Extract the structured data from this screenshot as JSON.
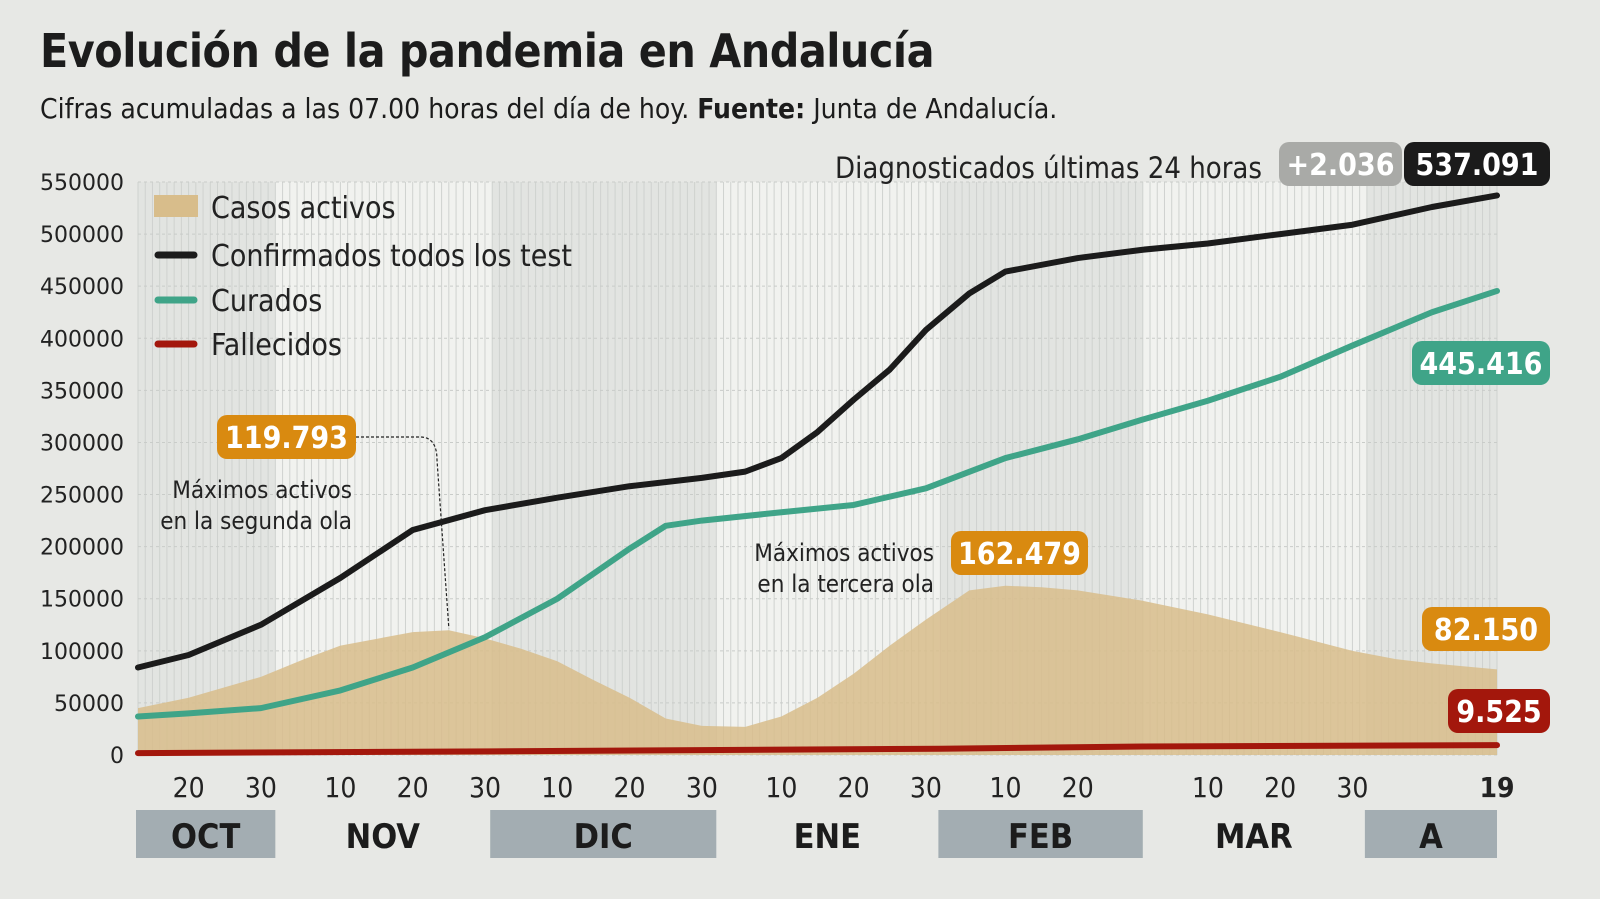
{
  "title": "Evolución de la pandemia en Andalucía",
  "subtitle": {
    "text": "Cifras acumuladas a las 07.00 horas del día de hoy.",
    "source_label": "Fuente:",
    "source": "Junta de Andalucía."
  },
  "header_note": {
    "text": "Diagnosticados últimas 24 horas",
    "delta": "+2.036",
    "total": "537.091"
  },
  "colors": {
    "activos": "#d8bd8b",
    "confirmados": "#1b1b1b",
    "curados": "#3fa488",
    "fallecidos": "#a3170c",
    "orange_label": "#d98a10",
    "month_band": "#a3adb2",
    "delta_badge": "#a9aaa7"
  },
  "chart_data": {
    "type": "line",
    "ylim": [
      0,
      550000
    ],
    "yticks": [
      0,
      50000,
      100000,
      150000,
      200000,
      250000,
      300000,
      350000,
      400000,
      450000,
      500000,
      550000
    ],
    "xlim": [
      "2020-10-13",
      "2021-04-19"
    ],
    "grid": true,
    "legend_position": "top-left",
    "xtick_labels": [
      {
        "date": "2020-10-20",
        "label": "20"
      },
      {
        "date": "2020-10-30",
        "label": "30"
      },
      {
        "date": "2020-11-10",
        "label": "10"
      },
      {
        "date": "2020-11-20",
        "label": "20"
      },
      {
        "date": "2020-11-30",
        "label": "30"
      },
      {
        "date": "2020-12-10",
        "label": "10"
      },
      {
        "date": "2020-12-20",
        "label": "20"
      },
      {
        "date": "2020-12-30",
        "label": "30"
      },
      {
        "date": "2021-01-10",
        "label": "10"
      },
      {
        "date": "2021-01-20",
        "label": "20"
      },
      {
        "date": "2021-01-30",
        "label": "30"
      },
      {
        "date": "2021-02-10",
        "label": "10"
      },
      {
        "date": "2021-02-20",
        "label": "20"
      },
      {
        "date": "2021-03-10",
        "label": "10"
      },
      {
        "date": "2021-03-20",
        "label": "20"
      },
      {
        "date": "2021-03-30",
        "label": "30"
      },
      {
        "date": "2021-04-19",
        "label": "19",
        "bold": true
      }
    ],
    "months": [
      {
        "label": "OCT",
        "start": "2020-10-13",
        "end": "2020-11-01",
        "shaded": true
      },
      {
        "label": "NOV",
        "start": "2020-11-01",
        "end": "2020-12-01",
        "shaded": false
      },
      {
        "label": "DIC",
        "start": "2020-12-01",
        "end": "2021-01-01",
        "shaded": true
      },
      {
        "label": "ENE",
        "start": "2021-01-01",
        "end": "2021-02-01",
        "shaded": false
      },
      {
        "label": "FEB",
        "start": "2021-02-01",
        "end": "2021-03-01",
        "shaded": true
      },
      {
        "label": "MAR",
        "start": "2021-03-01",
        "end": "2021-04-01",
        "shaded": false
      },
      {
        "label": "A",
        "start": "2021-04-01",
        "end": "2021-04-19",
        "shaded": true
      }
    ],
    "series": [
      {
        "name": "Casos activos",
        "kind": "area",
        "color_key": "activos",
        "end_label": "82.150",
        "points": [
          [
            "2020-10-13",
            45000
          ],
          [
            "2020-10-20",
            55000
          ],
          [
            "2020-10-30",
            75000
          ],
          [
            "2020-11-05",
            92000
          ],
          [
            "2020-11-10",
            105000
          ],
          [
            "2020-11-20",
            118000
          ],
          [
            "2020-11-25",
            119793
          ],
          [
            "2020-11-30",
            112000
          ],
          [
            "2020-12-05",
            102000
          ],
          [
            "2020-12-10",
            90000
          ],
          [
            "2020-12-15",
            72000
          ],
          [
            "2020-12-20",
            55000
          ],
          [
            "2020-12-25",
            35000
          ],
          [
            "2020-12-30",
            28000
          ],
          [
            "2021-01-05",
            27000
          ],
          [
            "2021-01-10",
            37000
          ],
          [
            "2021-01-15",
            55000
          ],
          [
            "2021-01-20",
            78000
          ],
          [
            "2021-01-25",
            105000
          ],
          [
            "2021-01-30",
            130000
          ],
          [
            "2021-02-05",
            158000
          ],
          [
            "2021-02-10",
            162479
          ],
          [
            "2021-02-15",
            161000
          ],
          [
            "2021-02-20",
            158000
          ],
          [
            "2021-03-01",
            148000
          ],
          [
            "2021-03-10",
            135000
          ],
          [
            "2021-03-20",
            118000
          ],
          [
            "2021-03-30",
            100000
          ],
          [
            "2021-04-05",
            92000
          ],
          [
            "2021-04-10",
            88000
          ],
          [
            "2021-04-19",
            82150
          ]
        ]
      },
      {
        "name": "Confirmados todos los test",
        "kind": "line",
        "color_key": "confirmados",
        "end_label": "537.091",
        "points": [
          [
            "2020-10-13",
            84000
          ],
          [
            "2020-10-20",
            96000
          ],
          [
            "2020-10-30",
            125000
          ],
          [
            "2020-11-10",
            170000
          ],
          [
            "2020-11-20",
            216000
          ],
          [
            "2020-11-30",
            235000
          ],
          [
            "2020-12-10",
            247000
          ],
          [
            "2020-12-20",
            258000
          ],
          [
            "2020-12-30",
            266000
          ],
          [
            "2021-01-05",
            272000
          ],
          [
            "2021-01-10",
            285000
          ],
          [
            "2021-01-15",
            310000
          ],
          [
            "2021-01-20",
            341000
          ],
          [
            "2021-01-25",
            370000
          ],
          [
            "2021-01-30",
            408000
          ],
          [
            "2021-02-05",
            443000
          ],
          [
            "2021-02-10",
            464000
          ],
          [
            "2021-02-20",
            477000
          ],
          [
            "2021-03-01",
            485000
          ],
          [
            "2021-03-10",
            491000
          ],
          [
            "2021-03-20",
            500000
          ],
          [
            "2021-03-30",
            509000
          ],
          [
            "2021-04-10",
            526000
          ],
          [
            "2021-04-19",
            537091
          ]
        ]
      },
      {
        "name": "Curados",
        "kind": "line",
        "color_key": "curados",
        "end_label": "445.416",
        "points": [
          [
            "2020-10-13",
            37000
          ],
          [
            "2020-10-20",
            40000
          ],
          [
            "2020-10-30",
            45000
          ],
          [
            "2020-11-10",
            62000
          ],
          [
            "2020-11-20",
            84000
          ],
          [
            "2020-11-30",
            113000
          ],
          [
            "2020-12-10",
            150000
          ],
          [
            "2020-12-20",
            198000
          ],
          [
            "2020-12-25",
            220000
          ],
          [
            "2020-12-30",
            225000
          ],
          [
            "2021-01-10",
            233000
          ],
          [
            "2021-01-20",
            240000
          ],
          [
            "2021-01-30",
            256000
          ],
          [
            "2021-02-10",
            285000
          ],
          [
            "2021-02-20",
            303000
          ],
          [
            "2021-03-01",
            322000
          ],
          [
            "2021-03-10",
            340000
          ],
          [
            "2021-03-20",
            363000
          ],
          [
            "2021-03-30",
            393000
          ],
          [
            "2021-04-10",
            425000
          ],
          [
            "2021-04-19",
            445416
          ]
        ]
      },
      {
        "name": "Fallecidos",
        "kind": "line",
        "color_key": "fallecidos",
        "end_label": "9.525",
        "points": [
          [
            "2020-10-13",
            1800
          ],
          [
            "2020-12-01",
            3500
          ],
          [
            "2021-02-01",
            6000
          ],
          [
            "2021-03-01",
            8200
          ],
          [
            "2021-04-19",
            9525
          ]
        ]
      }
    ],
    "annotations": [
      {
        "value_label": "119.793",
        "text": [
          "Máximos activos",
          "en la segunda ola"
        ],
        "date": "2020-11-25"
      },
      {
        "value_label": "162.479",
        "text": [
          "Máximos activos",
          "en la tercera ola"
        ],
        "date": "2021-02-10"
      }
    ]
  }
}
